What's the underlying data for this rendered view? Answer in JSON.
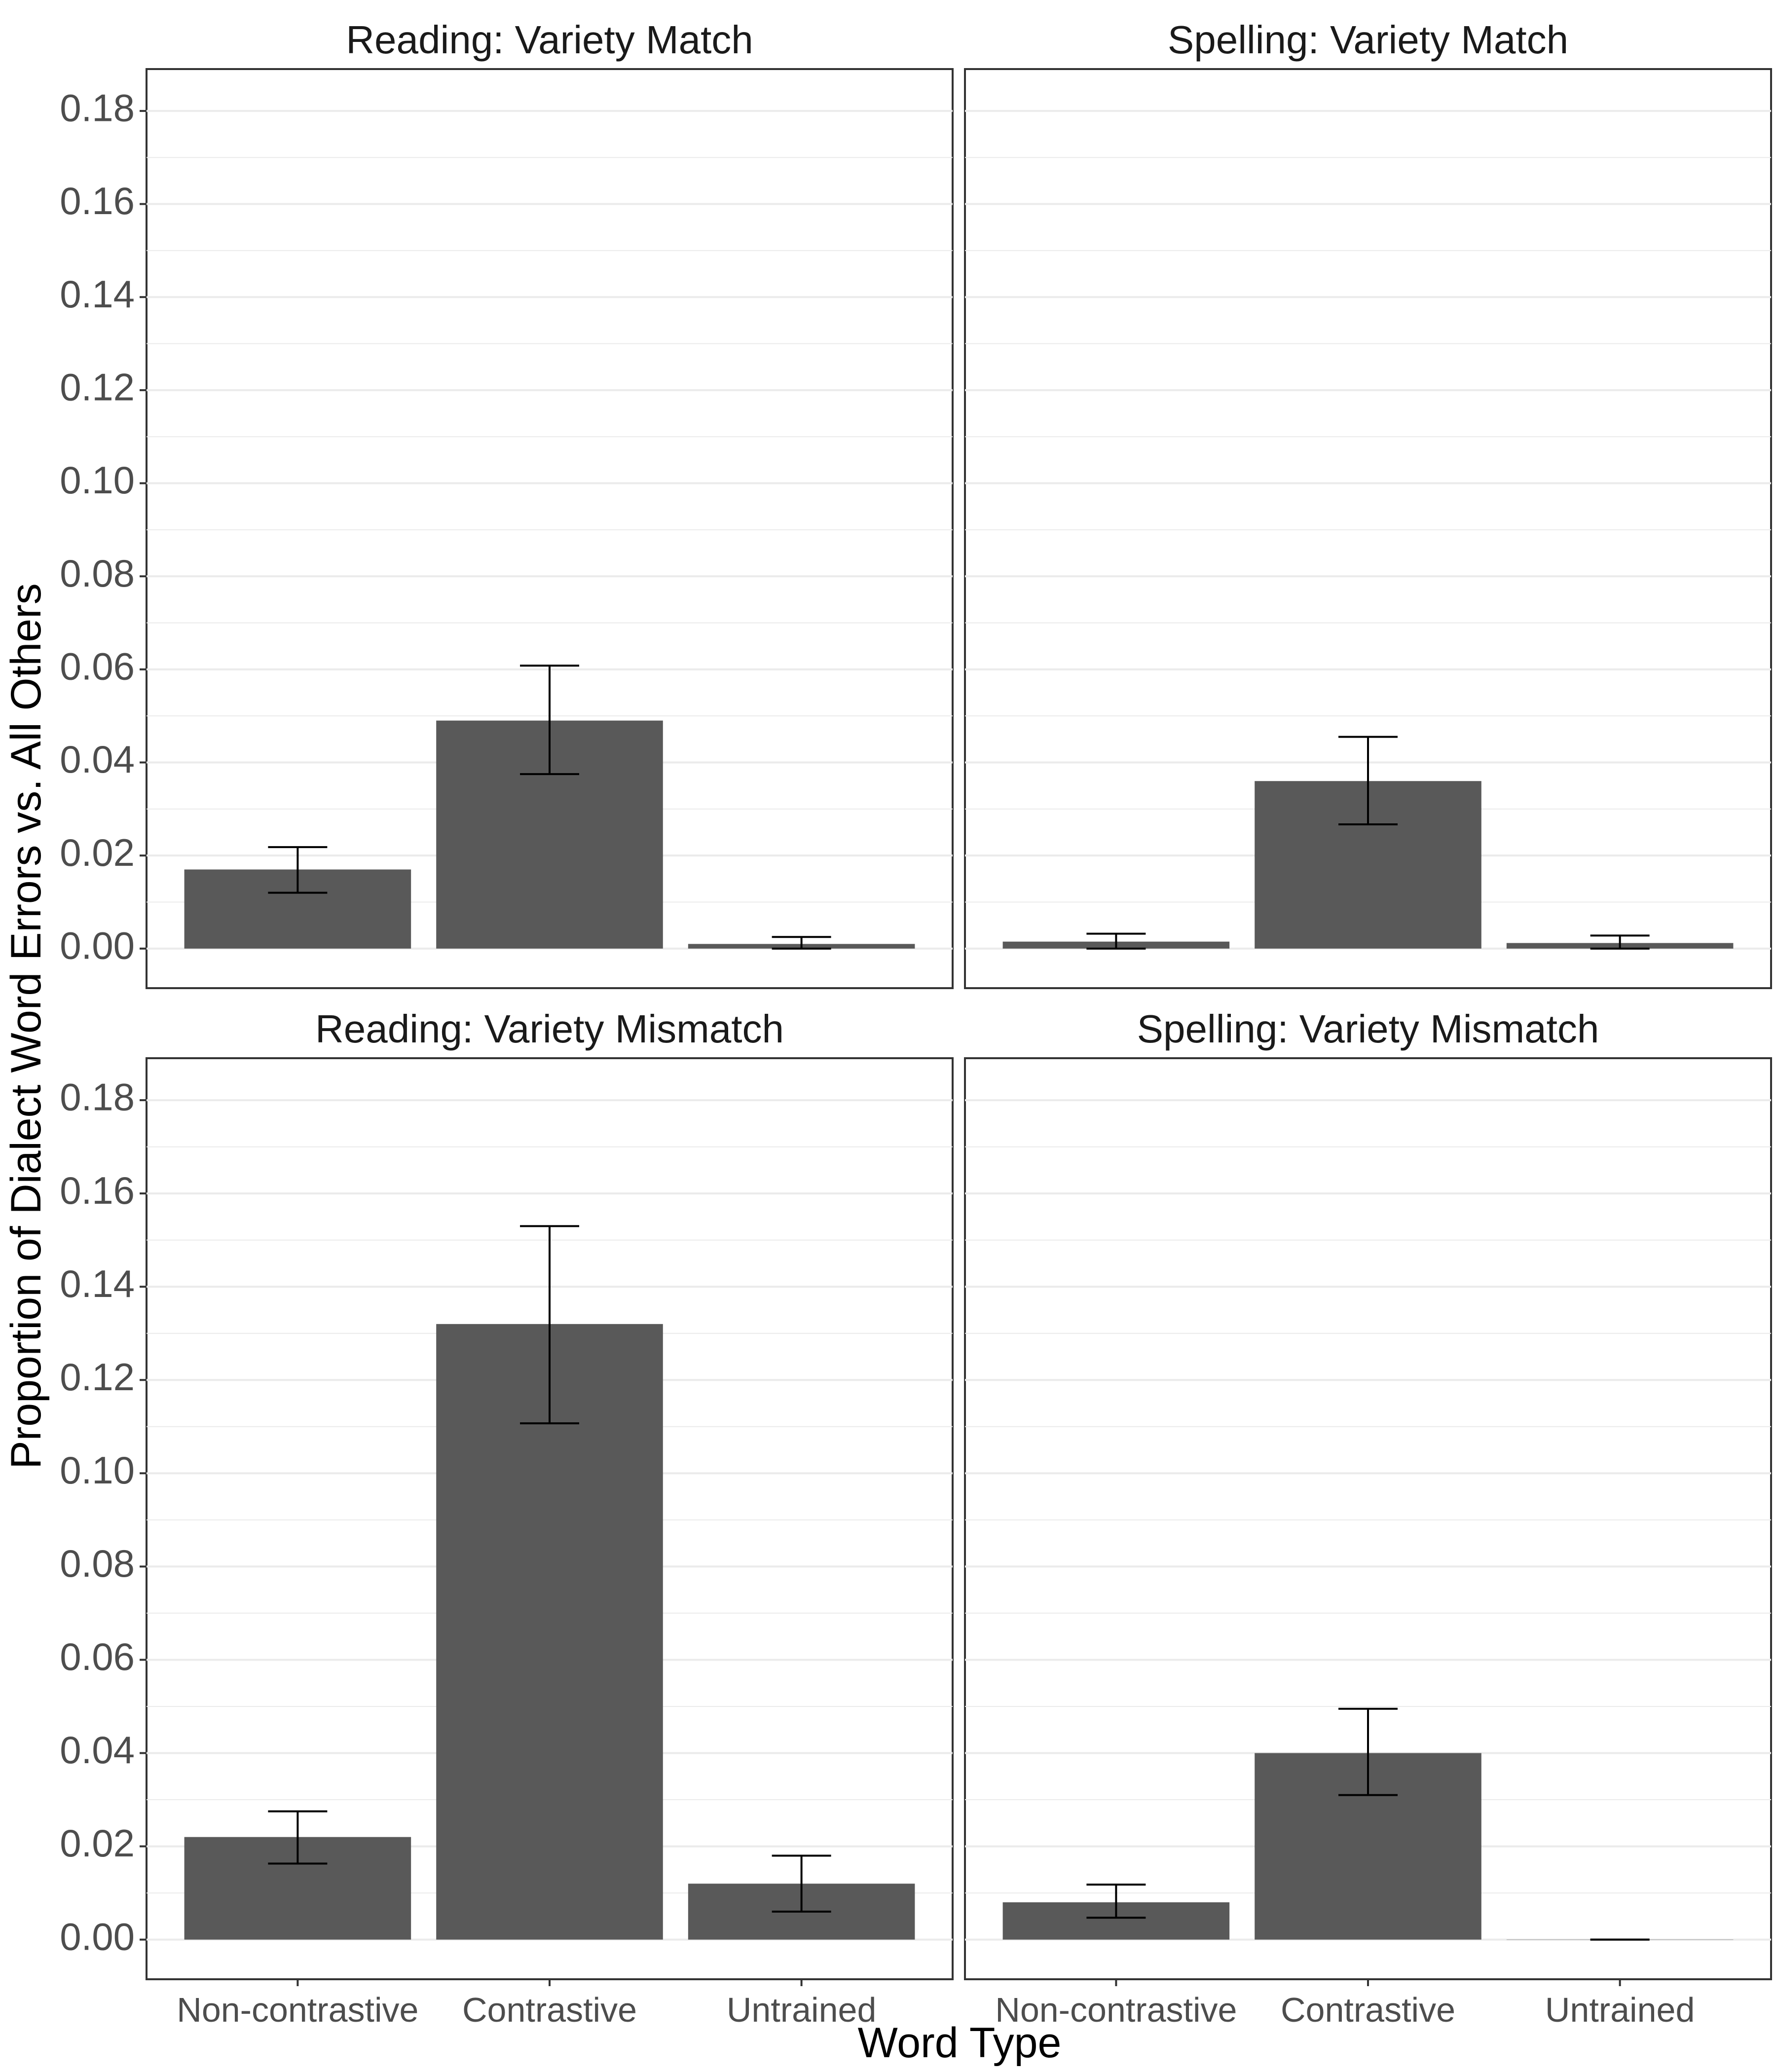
{
  "chart_data": {
    "type": "bar",
    "x_label": "Word Type",
    "y_label": "Proportion of Dialect Word Errors vs. All Others",
    "categories": [
      "Non-contrastive",
      "Contrastive",
      "Untrained"
    ],
    "y_ticks": [
      "0.00",
      "0.02",
      "0.04",
      "0.06",
      "0.08",
      "0.10",
      "0.12",
      "0.14",
      "0.16",
      "0.18"
    ],
    "ylim": [
      -0.0085,
      0.189
    ],
    "grid": true,
    "bar_color": "#595959",
    "panels": [
      {
        "title": "Reading: Variety Match",
        "values": [
          0.017,
          0.049,
          0.001
        ],
        "error_low": [
          0.012,
          0.0375,
          0.0
        ],
        "error_high": [
          0.0218,
          0.0608,
          0.0025
        ]
      },
      {
        "title": "Spelling: Variety Match",
        "values": [
          0.0015,
          0.036,
          0.0012
        ],
        "error_low": [
          0.0,
          0.0267,
          0.0
        ],
        "error_high": [
          0.0032,
          0.0455,
          0.0028
        ]
      },
      {
        "title": "Reading: Variety Mismatch",
        "values": [
          0.022,
          0.132,
          0.012
        ],
        "error_low": [
          0.0163,
          0.1107,
          0.006
        ],
        "error_high": [
          0.0275,
          0.153,
          0.018
        ]
      },
      {
        "title": "Spelling: Variety Mismatch",
        "values": [
          0.008,
          0.04,
          0.0
        ],
        "error_low": [
          0.0047,
          0.031,
          0.0
        ],
        "error_high": [
          0.0118,
          0.0495,
          0.0
        ]
      }
    ]
  }
}
